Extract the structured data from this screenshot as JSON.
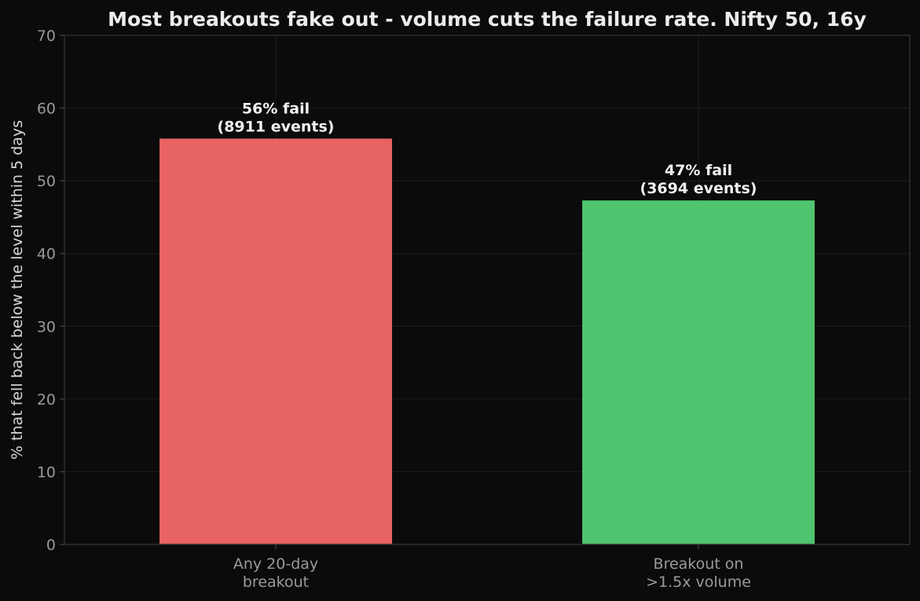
{
  "chart_data": {
    "type": "bar",
    "title": "Most breakouts fake out - volume cuts the failure rate.  Nifty 50, 16y",
    "xlabel": "",
    "ylabel": "% that fell back below the level within 5 days",
    "ylim": [
      0,
      70
    ],
    "yticks": [
      0,
      10,
      20,
      30,
      40,
      50,
      60,
      70
    ],
    "grid": true,
    "categories": [
      [
        "Any 20-day",
        "breakout"
      ],
      [
        "Breakout on",
        ">1.5x volume"
      ]
    ],
    "values": [
      55.8,
      47.3
    ],
    "bar_labels": [
      [
        "56% fail",
        "(8911 events)"
      ],
      [
        "47% fail",
        "(3694 events)"
      ]
    ],
    "colors": [
      "#e86464",
      "#50c46e"
    ]
  }
}
